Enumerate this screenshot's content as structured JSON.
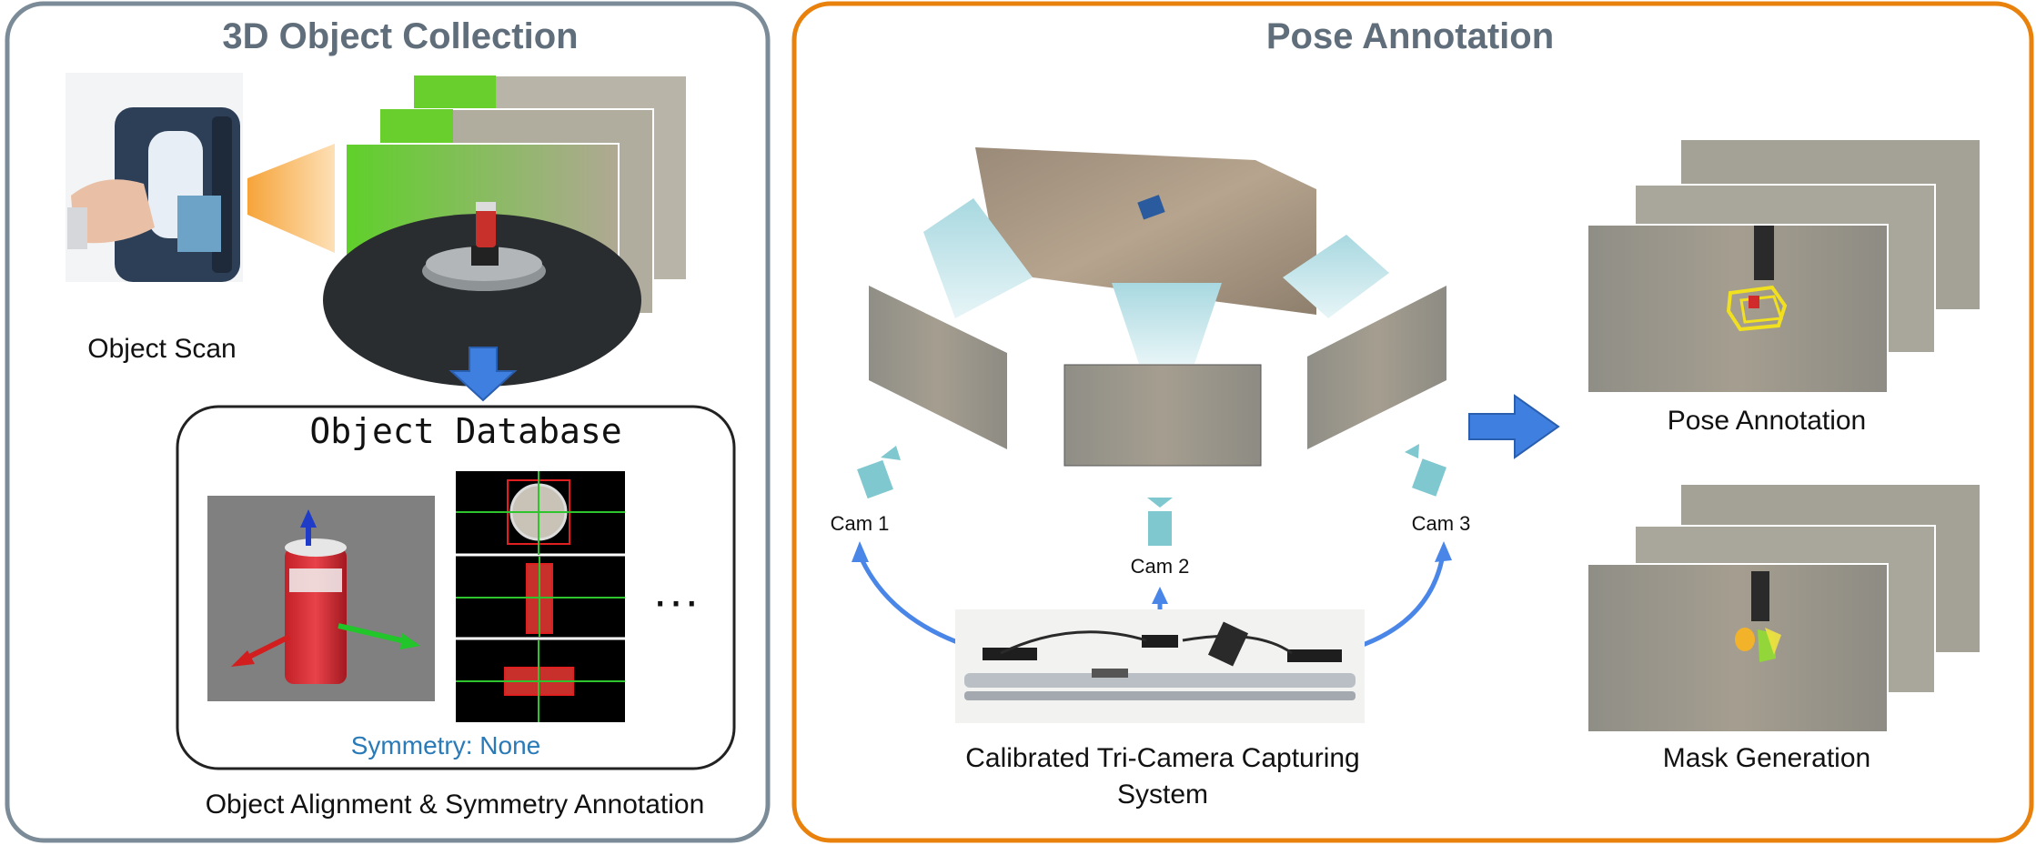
{
  "left_panel": {
    "title": "3D Object Collection",
    "object_scan_label": "Object Scan",
    "database_title": "Object Database",
    "symmetry_label": "Symmetry: None",
    "ellipsis": "···",
    "alignment_label": "Object Alignment & Symmetry Annotation"
  },
  "right_panel": {
    "title": "Pose Annotation",
    "cameras": [
      "Cam 1",
      "Cam 2",
      "Cam 3"
    ],
    "system_label_line1": "Calibrated Tri-Camera Capturing",
    "system_label_line2": "System",
    "pose_label": "Pose Annotation",
    "mask_label": "Mask Generation"
  },
  "colors": {
    "left_border": "#7b8c98",
    "right_border": "#e8820c",
    "title_text": "#5f6e7a",
    "arrow_blue": "#3f7fe0",
    "symmetry_text": "#2a7ab8",
    "camera_teal": "#7fc8cf"
  }
}
